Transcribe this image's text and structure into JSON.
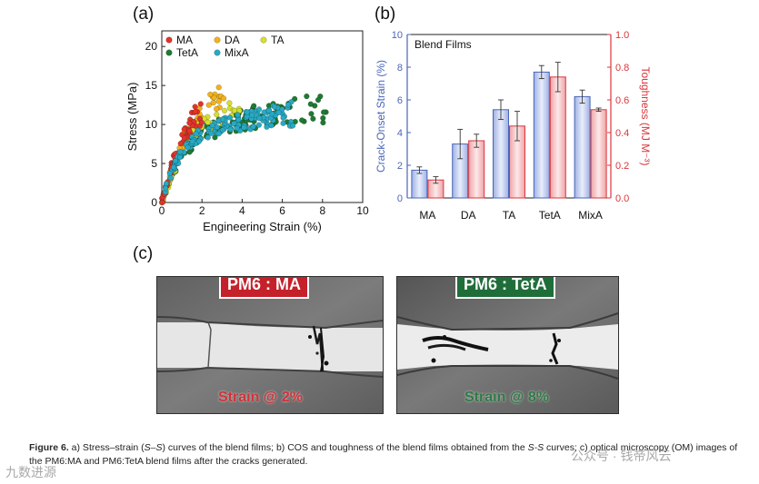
{
  "panels": {
    "a": "(a)",
    "b": "(b)",
    "c": "(c)"
  },
  "chart_data": [
    {
      "type": "scatter",
      "panel": "a",
      "xlabel": "Engineering Strain (%)",
      "ylabel": "Stress (MPa)",
      "xlim": [
        0,
        10
      ],
      "ylim": [
        0,
        22
      ],
      "xticks": [
        0,
        2,
        4,
        6,
        8,
        10
      ],
      "yticks": [
        0,
        5,
        10,
        15,
        20
      ],
      "legend": [
        "MA",
        "DA",
        "TA",
        "TetA",
        "MixA"
      ],
      "series": [
        {
          "name": "MA",
          "color": "#e0342a",
          "x": [
            0.3,
            0.7,
            1.0,
            1.3,
            1.5,
            1.8,
            2.0
          ],
          "y": [
            3.1,
            6.0,
            8.1,
            9.6,
            10.6,
            11.2,
            11.5
          ]
        },
        {
          "name": "DA",
          "color": "#f2b21a",
          "x": [
            0.4,
            0.8,
            1.2,
            1.6,
            2.0,
            2.4,
            2.8,
            3.2
          ],
          "y": [
            3.5,
            6.4,
            8.6,
            10.1,
            11.4,
            12.7,
            13.5,
            12.8
          ]
        },
        {
          "name": "TA",
          "color": "#d6df2c",
          "x": [
            0.5,
            1.0,
            1.5,
            2.0,
            2.5,
            3.0,
            3.5,
            4.0
          ],
          "y": [
            3.6,
            6.8,
            8.7,
            9.6,
            10.4,
            11.2,
            11.4,
            10.6
          ]
        },
        {
          "name": "TetA",
          "color": "#1f7a32",
          "x": [
            0.3,
            1.0,
            2.0,
            3.0,
            4.0,
            5.0,
            6.0,
            7.0,
            8.0,
            8.4
          ],
          "y": [
            2.5,
            6.5,
            8.8,
            9.8,
            10.5,
            11.2,
            11.6,
            11.8,
            11.6,
            11.0
          ]
        },
        {
          "name": "MixA",
          "color": "#27a9c4",
          "x": [
            0.3,
            1.0,
            2.0,
            3.0,
            4.0,
            5.0,
            6.0,
            6.6
          ],
          "y": [
            2.8,
            6.6,
            8.9,
            9.8,
            10.4,
            10.9,
            11.3,
            11.4
          ]
        }
      ]
    },
    {
      "type": "bar",
      "panel": "b",
      "title": "Blend Films",
      "categories": [
        "MA",
        "DA",
        "TA",
        "TetA",
        "MixA"
      ],
      "ylabel_left": "Crack-Onset Strain (%)",
      "ylabel_right": "Toughness (MJ M⁻³)",
      "ylim_left": [
        0,
        10
      ],
      "ylim_right": [
        0,
        1.0
      ],
      "yticks_left": [
        0,
        2,
        4,
        6,
        8,
        10
      ],
      "yticks_right": [
        "0.0",
        "0.2",
        "0.4",
        "0.6",
        "0.8",
        "1.0"
      ],
      "series": [
        {
          "name": "Crack-Onset Strain",
          "axis": "left",
          "color": "#4a66b8",
          "values": [
            1.7,
            3.3,
            5.4,
            7.7,
            6.2
          ],
          "errors": [
            0.2,
            0.9,
            0.6,
            0.4,
            0.4
          ]
        },
        {
          "name": "Toughness",
          "axis": "right",
          "color": "#d9363b",
          "values": [
            0.11,
            0.35,
            0.44,
            0.74,
            0.54
          ],
          "errors": [
            0.02,
            0.04,
            0.09,
            0.09,
            0.01
          ]
        }
      ]
    }
  ],
  "om": {
    "left": {
      "title": "PM6 : MA",
      "strain": "Strain @ 2%",
      "title_bg": "#c4212b",
      "strain_color": "#cf3337"
    },
    "right": {
      "title": "PM6 : TetA",
      "strain": "Strain @ 8%",
      "title_bg": "#1f6e3a",
      "strain_color": "#2f7a45"
    }
  },
  "caption": {
    "fig": "Figure 6.",
    "t1": " a) Stress–strain (",
    "ss1": "S–S",
    "t2": ") curves of the blend films; b) COS and toughness of the blend films obtained from the ",
    "ss2": "S-S",
    "t3": " curves; c) optical microscopy (OM) images of the PM6:MA and PM6:TetA blend films after the cracks generated."
  },
  "watermarks": {
    "left": "九数进源",
    "right": "公众号 · 钱帝风云"
  }
}
